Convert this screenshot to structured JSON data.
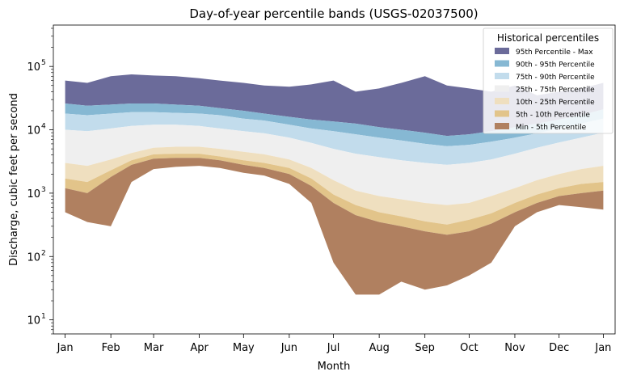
{
  "chart_data": {
    "type": "area",
    "title": "Day-of-year percentile bands (USGS-02037500)",
    "xlabel": "Month",
    "ylabel": "Discharge, cubic feet per second",
    "yscale": "log",
    "ylim": [
      6,
      450000
    ],
    "xlim": [
      -8,
      373
    ],
    "grid": false,
    "legend_position": "top-right",
    "legend_title": "Historical percentiles",
    "x_ticks": [
      {
        "label": "Jan",
        "day": 0
      },
      {
        "label": "Feb",
        "day": 31
      },
      {
        "label": "Mar",
        "day": 60
      },
      {
        "label": "Apr",
        "day": 91
      },
      {
        "label": "May",
        "day": 121
      },
      {
        "label": "Jun",
        "day": 152
      },
      {
        "label": "Jul",
        "day": 182
      },
      {
        "label": "Aug",
        "day": 213
      },
      {
        "label": "Sep",
        "day": 244
      },
      {
        "label": "Oct",
        "day": 274
      },
      {
        "label": "Nov",
        "day": 305
      },
      {
        "label": "Dec",
        "day": 335
      },
      {
        "label": "Jan",
        "day": 365
      }
    ],
    "y_ticks": [
      {
        "label": "10",
        "sup": "1",
        "value": 10
      },
      {
        "label": "10",
        "sup": "2",
        "value": 100
      },
      {
        "label": "10",
        "sup": "3",
        "value": 1000
      },
      {
        "label": "10",
        "sup": "4",
        "value": 10000
      },
      {
        "label": "10",
        "sup": "5",
        "value": 100000
      }
    ],
    "day_anchors": [
      0,
      15,
      31,
      45,
      60,
      75,
      91,
      105,
      121,
      135,
      152,
      167,
      182,
      197,
      213,
      228,
      244,
      259,
      274,
      289,
      305,
      320,
      335,
      350,
      365
    ],
    "percentile_anchors": {
      "min": [
        500,
        350,
        300,
        1500,
        2400,
        2600,
        2700,
        2500,
        2100,
        1900,
        1400,
        700,
        80,
        25,
        25,
        40,
        30,
        35,
        50,
        80,
        300,
        500,
        650,
        600,
        550
      ],
      "p5": [
        1200,
        1000,
        1800,
        2800,
        3500,
        3600,
        3600,
        3300,
        2800,
        2500,
        2000,
        1300,
        700,
        450,
        350,
        300,
        250,
        220,
        250,
        330,
        500,
        700,
        900,
        1000,
        1100
      ],
      "p10": [
        1700,
        1500,
        2300,
        3300,
        4100,
        4200,
        4200,
        3800,
        3300,
        3000,
        2500,
        1700,
        950,
        650,
        500,
        430,
        360,
        320,
        380,
        480,
        700,
        950,
        1200,
        1400,
        1500
      ],
      "p25": [
        3000,
        2700,
        3400,
        4300,
        5200,
        5400,
        5400,
        5000,
        4500,
        4100,
        3400,
        2500,
        1600,
        1100,
        900,
        800,
        700,
        650,
        700,
        900,
        1200,
        1600,
        2000,
        2400,
        2700
      ],
      "p75": [
        10000,
        9500,
        10500,
        11500,
        12000,
        12000,
        11500,
        10500,
        9500,
        8800,
        7500,
        6200,
        5000,
        4200,
        3700,
        3300,
        3000,
        2800,
        3000,
        3400,
        4200,
        5200,
        6300,
        7500,
        9000
      ],
      "p90": [
        18000,
        17000,
        18000,
        19000,
        19000,
        18500,
        18000,
        17000,
        15000,
        14000,
        12000,
        10500,
        9500,
        8500,
        7500,
        6800,
        6000,
        5500,
        5800,
        6500,
        7500,
        8800,
        10500,
        12500,
        15000
      ],
      "p95": [
        26000,
        24000,
        25000,
        26000,
        26000,
        25000,
        24000,
        22000,
        20000,
        18000,
        16000,
        14500,
        13500,
        12500,
        11000,
        10000,
        9000,
        8000,
        8500,
        9500,
        11000,
        12500,
        14500,
        17000,
        21000
      ],
      "max": [
        60000,
        55000,
        70000,
        75000,
        72000,
        70000,
        65000,
        60000,
        55000,
        50000,
        48000,
        52000,
        60000,
        40000,
        45000,
        55000,
        70000,
        50000,
        45000,
        40000,
        50000,
        35000,
        40000,
        45000,
        55000
      ]
    },
    "bands": [
      {
        "name": "95th Percentile - Max",
        "lower": "p95",
        "upper": "max",
        "color": "#6b6b9a"
      },
      {
        "name": "90th - 95th Percentile",
        "lower": "p90",
        "upper": "p95",
        "color": "#86b8d3"
      },
      {
        "name": "75th - 90th Percentile",
        "lower": "p75",
        "upper": "p90",
        "color": "#c2dcec"
      },
      {
        "name": "25th - 75th Percentile",
        "lower": "p25",
        "upper": "p75",
        "color": "#efefef"
      },
      {
        "name": "10th - 25th Percentile",
        "lower": "p10",
        "upper": "p25",
        "color": "#efdfbf"
      },
      {
        "name": "5th - 10th Percentile",
        "lower": "p5",
        "upper": "p10",
        "color": "#e2c48a"
      },
      {
        "name": "Min - 5th Percentile",
        "lower": "min",
        "upper": "p5",
        "color": "#b08060"
      }
    ]
  }
}
